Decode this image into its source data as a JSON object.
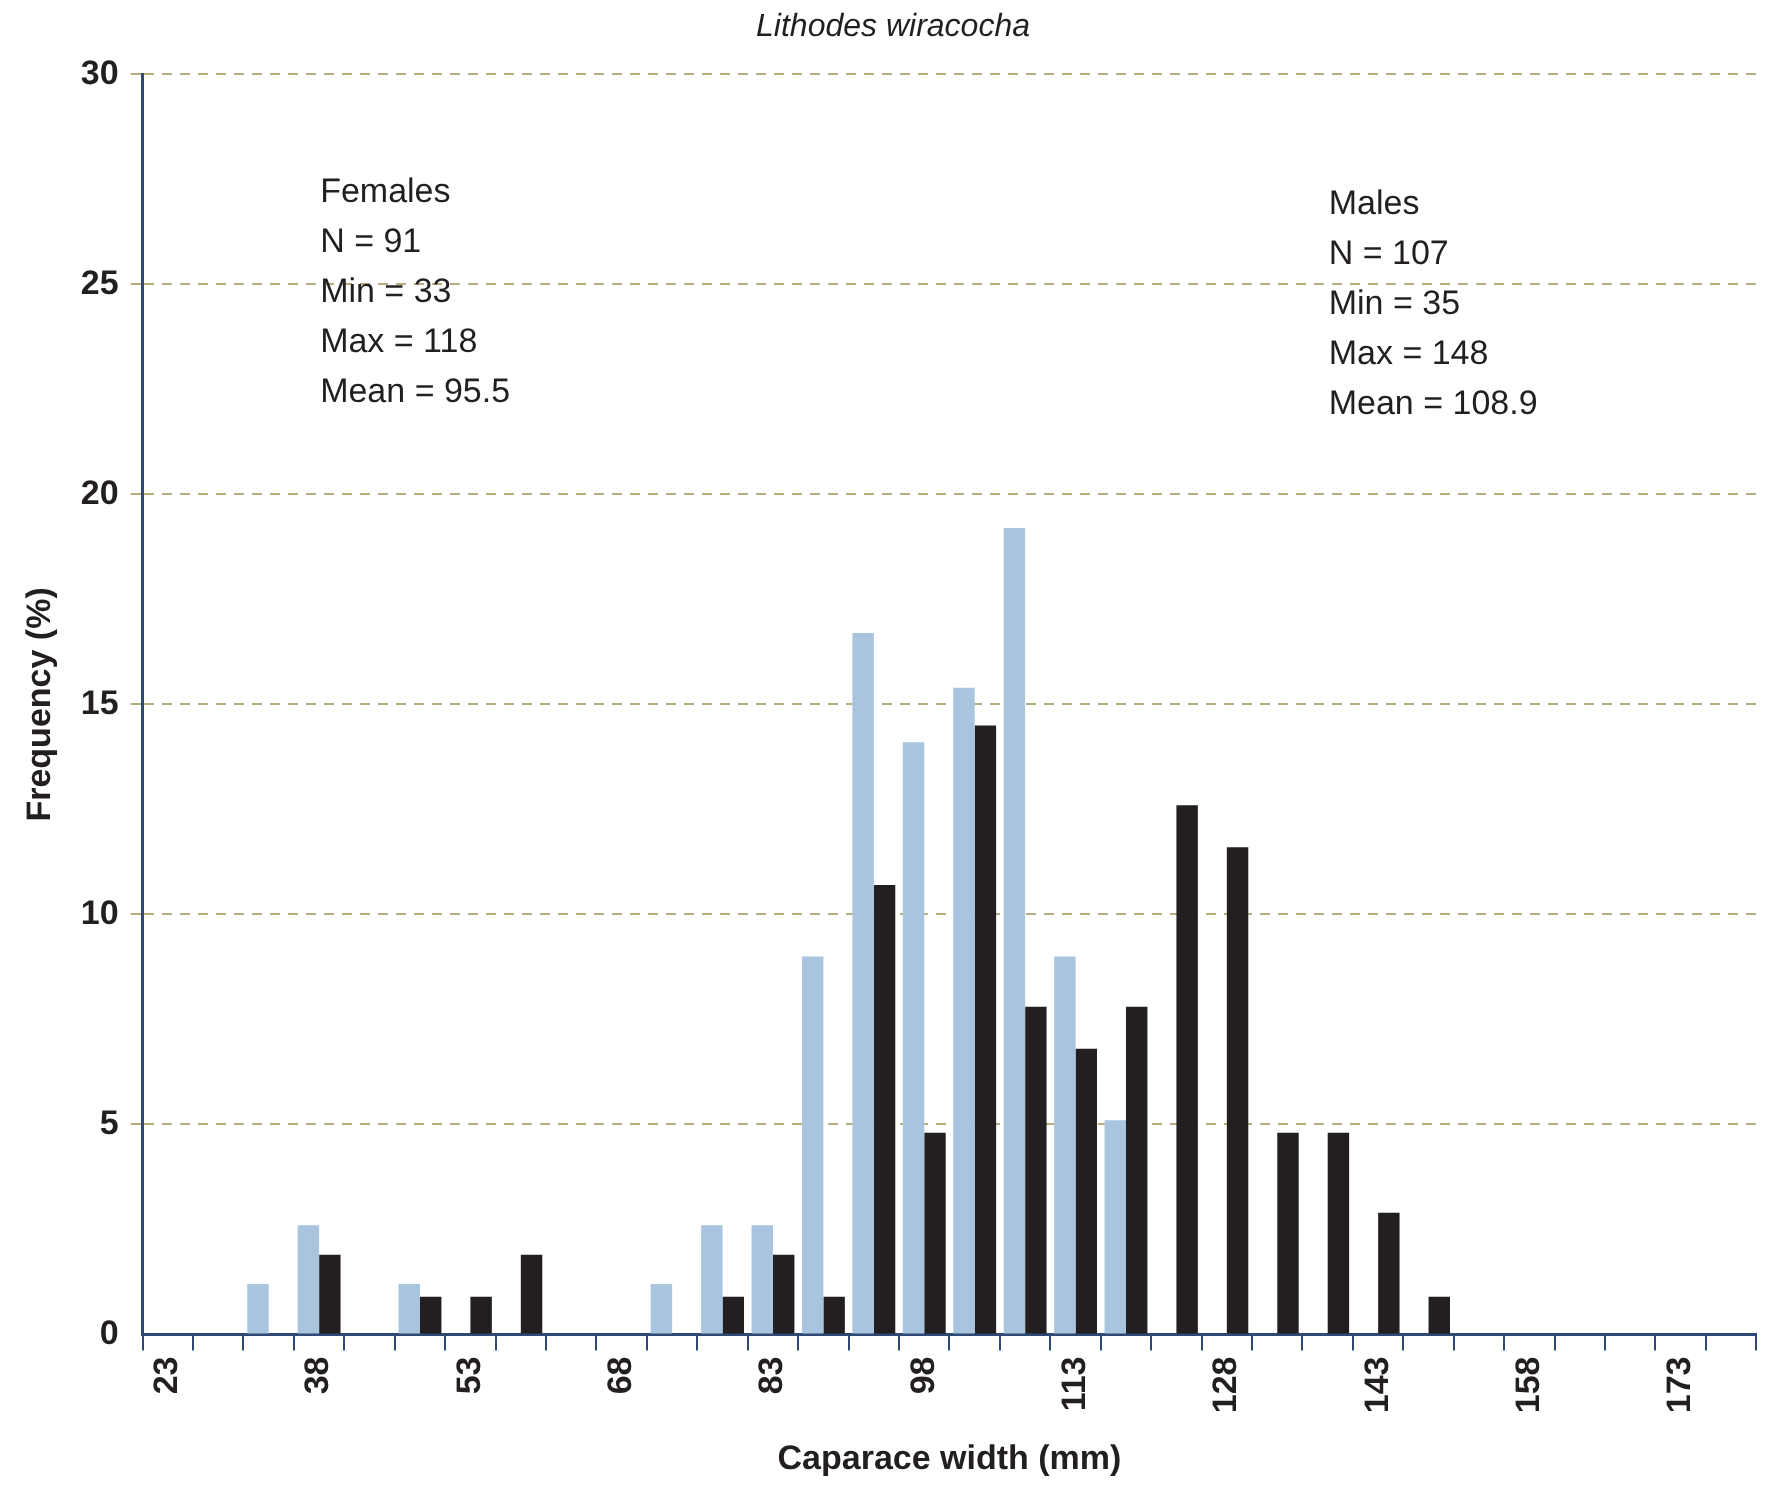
{
  "chart_data": {
    "type": "bar",
    "title": "Lithodes wiracocha",
    "xlabel": "Caparace width (mm)",
    "ylabel": "Frequency (%)",
    "categories": [
      "23",
      null,
      null,
      "38",
      null,
      null,
      "53",
      null,
      null,
      "68",
      null,
      null,
      "83",
      null,
      null,
      "98",
      null,
      null,
      "113",
      null,
      null,
      "128",
      null,
      null,
      "143",
      null,
      null,
      "158",
      null,
      null,
      "173",
      null
    ],
    "series": [
      {
        "color": "#a8c4de",
        "values": [
          0,
          0,
          1.2,
          2.6,
          0,
          1.2,
          0,
          0,
          0,
          0,
          1.2,
          2.6,
          2.6,
          9.0,
          16.7,
          14.1,
          15.4,
          19.2,
          9.0,
          5.1,
          0,
          0,
          0,
          0,
          0,
          0,
          0,
          0,
          0,
          0,
          0,
          0
        ]
      },
      {
        "color": "#231f20",
        "values": [
          0,
          0,
          0,
          1.9,
          0,
          0.9,
          0.9,
          1.9,
          0,
          0,
          0,
          0.9,
          1.9,
          0.9,
          10.7,
          4.8,
          14.5,
          7.8,
          6.8,
          7.8,
          12.6,
          11.6,
          4.8,
          4.8,
          2.9,
          0.9,
          0,
          0,
          0,
          0,
          0,
          0
        ]
      }
    ],
    "ylim": [
      0,
      30
    ],
    "yticks": [
      0,
      5,
      10,
      15,
      20,
      25,
      30
    ],
    "grid": "y",
    "annotations": [
      "Females\nN = 91\nMin = 33\nMax = 118\nMean = 95.5",
      "Males\nN = 107\nMin = 35\nMax = 148\nMean = 108.9"
    ]
  }
}
